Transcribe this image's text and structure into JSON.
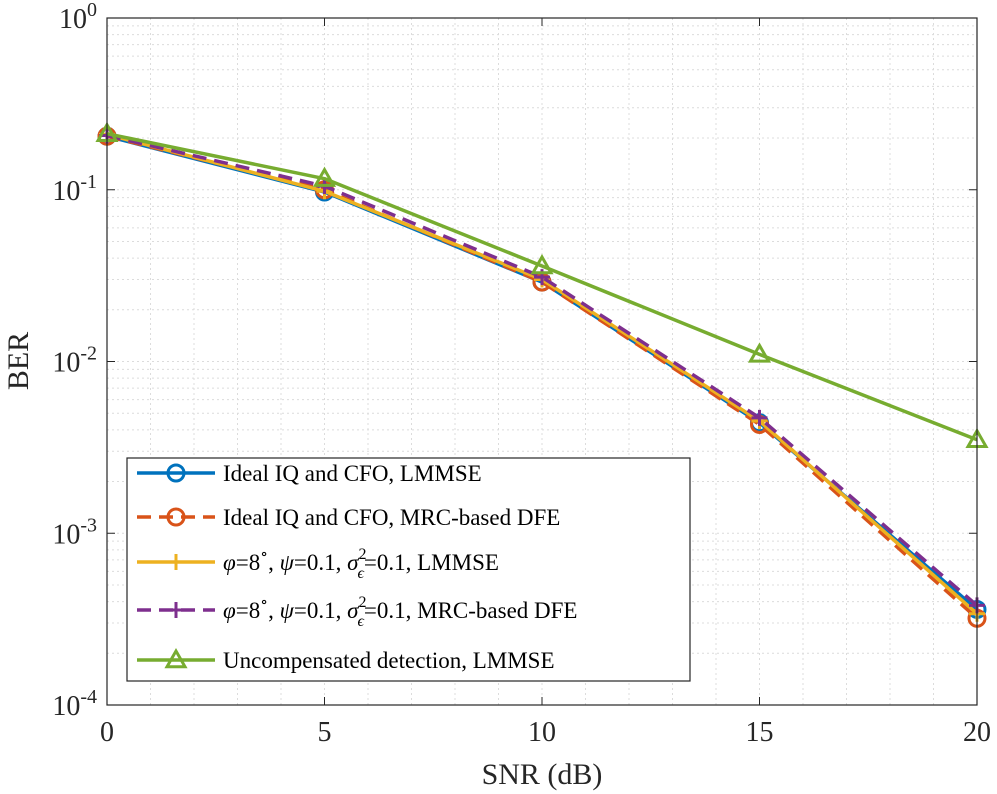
{
  "chart_data": {
    "type": "line",
    "xlabel": "SNR (dB)",
    "ylabel": "BER",
    "x_scale": "linear",
    "y_scale": "log",
    "xlim": [
      0,
      20
    ],
    "ylim": [
      0.0001,
      1
    ],
    "x_ticks": [
      0,
      5,
      10,
      15,
      20
    ],
    "x_tick_labels": [
      "0",
      "5",
      "10",
      "15",
      "20"
    ],
    "y_ticks": [
      0.0001,
      0.001,
      0.01,
      0.1,
      1
    ],
    "y_tick_labels": [
      {
        "base": "10",
        "exp": "-4"
      },
      {
        "base": "10",
        "exp": "-3"
      },
      {
        "base": "10",
        "exp": "-2"
      },
      {
        "base": "10",
        "exp": "-1"
      },
      {
        "base": "10",
        "exp": "0"
      }
    ],
    "grid": true,
    "legend_position": "bottom-left",
    "x": [
      0,
      5,
      10,
      15,
      20
    ],
    "series": [
      {
        "legend": [
          {
            "t": "Ideal IQ and CFO, LMMSE",
            "s": "n"
          }
        ],
        "color": "#0072BD",
        "dash": "solid",
        "marker": "circle",
        "values": [
          0.205,
          0.097,
          0.029,
          0.0044,
          0.00036
        ]
      },
      {
        "legend": [
          {
            "t": "Ideal IQ and CFO, MRC-based DFE",
            "s": "n"
          }
        ],
        "color": "#D95319",
        "dash": "dashed",
        "marker": "circle",
        "values": [
          0.205,
          0.1,
          0.029,
          0.0043,
          0.00032
        ]
      },
      {
        "legend": [
          {
            "t": "φ",
            "s": "i"
          },
          {
            "t": "=8",
            "s": "n"
          },
          {
            "t": "∘",
            "s": "sup"
          },
          {
            "t": ", ",
            "s": "n"
          },
          {
            "t": "ψ",
            "s": "i"
          },
          {
            "t": "=0.1, ",
            "s": "n"
          },
          {
            "t": "σ",
            "s": "i"
          },
          {
            "t": "2",
            "s": "sup"
          },
          {
            "t": "ϵ",
            "s": "sub"
          },
          {
            "t": "=0.1, LMMSE",
            "s": "n"
          }
        ],
        "color": "#EDB120",
        "dash": "solid",
        "marker": "plus",
        "values": [
          0.21,
          0.098,
          0.03,
          0.0045,
          0.00034
        ]
      },
      {
        "legend": [
          {
            "t": "φ",
            "s": "i"
          },
          {
            "t": "=8",
            "s": "n"
          },
          {
            "t": "∘",
            "s": "sup"
          },
          {
            "t": ", ",
            "s": "n"
          },
          {
            "t": "ψ",
            "s": "i"
          },
          {
            "t": "=0.1, ",
            "s": "n"
          },
          {
            "t": "σ",
            "s": "i"
          },
          {
            "t": "2",
            "s": "sup"
          },
          {
            "t": "ϵ",
            "s": "sub"
          },
          {
            "t": "=0.1, MRC-based DFE",
            "s": "n"
          }
        ],
        "color": "#7E2F8E",
        "dash": "dashed",
        "marker": "plus",
        "values": [
          0.207,
          0.105,
          0.031,
          0.0047,
          0.00038
        ]
      },
      {
        "legend": [
          {
            "t": "Uncompensated detection, LMMSE",
            "s": "n"
          }
        ],
        "color": "#77AC30",
        "dash": "solid",
        "marker": "triangle",
        "values": [
          0.212,
          0.116,
          0.036,
          0.011,
          0.0035
        ]
      }
    ]
  }
}
